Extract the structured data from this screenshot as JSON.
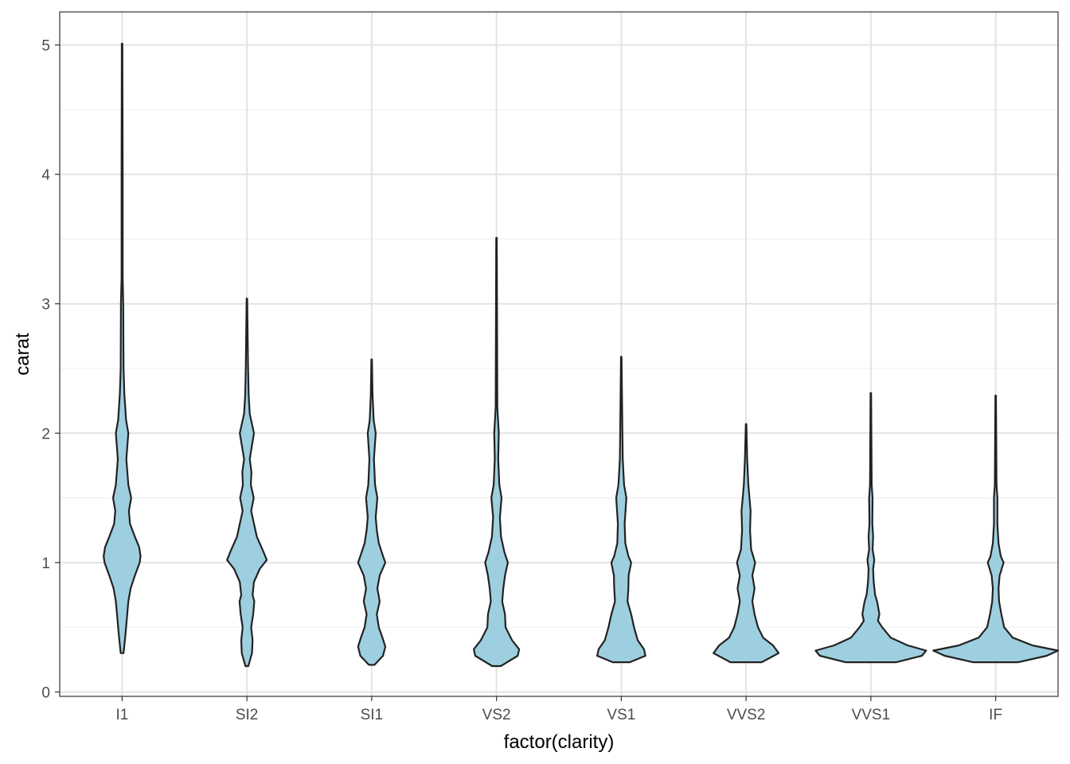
{
  "chart_data": {
    "type": "violin",
    "title": "",
    "xlabel": "factor(clarity)",
    "ylabel": "carat",
    "ylim": [
      0,
      5.1
    ],
    "yticks": [
      0,
      1,
      2,
      3,
      4,
      5
    ],
    "grid": true,
    "legend": "none",
    "fill_color": "#9ecfe0",
    "outline_color": "#222222",
    "categories": [
      "I1",
      "SI2",
      "SI1",
      "VS2",
      "VS1",
      "VVS2",
      "VVS1",
      "IF"
    ],
    "series": [
      {
        "category": "I1",
        "min": 0.3,
        "max": 5.01,
        "profile": [
          [
            0.3,
            0.05
          ],
          [
            0.45,
            0.12
          ],
          [
            0.6,
            0.18
          ],
          [
            0.7,
            0.22
          ],
          [
            0.8,
            0.3
          ],
          [
            0.9,
            0.45
          ],
          [
            1.0,
            0.62
          ],
          [
            1.05,
            0.65
          ],
          [
            1.12,
            0.6
          ],
          [
            1.2,
            0.45
          ],
          [
            1.3,
            0.28
          ],
          [
            1.4,
            0.24
          ],
          [
            1.5,
            0.32
          ],
          [
            1.6,
            0.22
          ],
          [
            1.8,
            0.15
          ],
          [
            2.0,
            0.22
          ],
          [
            2.1,
            0.14
          ],
          [
            2.3,
            0.08
          ],
          [
            2.5,
            0.05
          ],
          [
            3.0,
            0.04
          ],
          [
            3.2,
            0.02
          ],
          [
            4.0,
            0.02
          ],
          [
            5.01,
            0.01
          ]
        ]
      },
      {
        "category": "SI2",
        "min": 0.2,
        "max": 3.04,
        "profile": [
          [
            0.2,
            0.05
          ],
          [
            0.3,
            0.18
          ],
          [
            0.4,
            0.2
          ],
          [
            0.5,
            0.15
          ],
          [
            0.6,
            0.22
          ],
          [
            0.7,
            0.26
          ],
          [
            0.75,
            0.2
          ],
          [
            0.85,
            0.25
          ],
          [
            0.95,
            0.45
          ],
          [
            1.02,
            0.7
          ],
          [
            1.1,
            0.55
          ],
          [
            1.2,
            0.35
          ],
          [
            1.3,
            0.25
          ],
          [
            1.4,
            0.15
          ],
          [
            1.5,
            0.24
          ],
          [
            1.6,
            0.14
          ],
          [
            1.7,
            0.16
          ],
          [
            1.8,
            0.1
          ],
          [
            2.0,
            0.25
          ],
          [
            2.15,
            0.1
          ],
          [
            2.3,
            0.06
          ],
          [
            2.5,
            0.04
          ],
          [
            3.04,
            0.01
          ]
        ]
      },
      {
        "category": "SI1",
        "min": 0.21,
        "max": 2.57,
        "profile": [
          [
            0.21,
            0.1
          ],
          [
            0.28,
            0.4
          ],
          [
            0.35,
            0.48
          ],
          [
            0.42,
            0.38
          ],
          [
            0.5,
            0.25
          ],
          [
            0.6,
            0.18
          ],
          [
            0.7,
            0.28
          ],
          [
            0.8,
            0.2
          ],
          [
            0.9,
            0.28
          ],
          [
            1.0,
            0.48
          ],
          [
            1.05,
            0.4
          ],
          [
            1.15,
            0.25
          ],
          [
            1.25,
            0.18
          ],
          [
            1.35,
            0.14
          ],
          [
            1.5,
            0.2
          ],
          [
            1.6,
            0.12
          ],
          [
            1.8,
            0.08
          ],
          [
            2.0,
            0.14
          ],
          [
            2.1,
            0.07
          ],
          [
            2.3,
            0.03
          ],
          [
            2.57,
            0.01
          ]
        ]
      },
      {
        "category": "VS2",
        "min": 0.2,
        "max": 3.51,
        "profile": [
          [
            0.2,
            0.15
          ],
          [
            0.28,
            0.75
          ],
          [
            0.33,
            0.8
          ],
          [
            0.4,
            0.55
          ],
          [
            0.5,
            0.32
          ],
          [
            0.6,
            0.3
          ],
          [
            0.7,
            0.2
          ],
          [
            0.8,
            0.24
          ],
          [
            0.9,
            0.3
          ],
          [
            1.0,
            0.4
          ],
          [
            1.08,
            0.28
          ],
          [
            1.2,
            0.16
          ],
          [
            1.35,
            0.12
          ],
          [
            1.5,
            0.18
          ],
          [
            1.6,
            0.1
          ],
          [
            1.8,
            0.06
          ],
          [
            2.0,
            0.08
          ],
          [
            2.2,
            0.03
          ],
          [
            3.51,
            0.01
          ]
        ]
      },
      {
        "category": "VS1",
        "min": 0.23,
        "max": 2.59,
        "profile": [
          [
            0.23,
            0.3
          ],
          [
            0.28,
            0.85
          ],
          [
            0.33,
            0.8
          ],
          [
            0.4,
            0.58
          ],
          [
            0.5,
            0.45
          ],
          [
            0.6,
            0.35
          ],
          [
            0.7,
            0.22
          ],
          [
            0.8,
            0.25
          ],
          [
            0.9,
            0.26
          ],
          [
            1.0,
            0.35
          ],
          [
            1.05,
            0.25
          ],
          [
            1.15,
            0.14
          ],
          [
            1.3,
            0.12
          ],
          [
            1.5,
            0.18
          ],
          [
            1.6,
            0.1
          ],
          [
            1.8,
            0.05
          ],
          [
            2.0,
            0.04
          ],
          [
            2.59,
            0.01
          ]
        ]
      },
      {
        "category": "VVS2",
        "min": 0.23,
        "max": 2.07,
        "profile": [
          [
            0.23,
            0.55
          ],
          [
            0.3,
            1.15
          ],
          [
            0.36,
            0.95
          ],
          [
            0.42,
            0.6
          ],
          [
            0.5,
            0.42
          ],
          [
            0.6,
            0.3
          ],
          [
            0.7,
            0.22
          ],
          [
            0.8,
            0.3
          ],
          [
            0.9,
            0.22
          ],
          [
            1.0,
            0.32
          ],
          [
            1.1,
            0.18
          ],
          [
            1.25,
            0.14
          ],
          [
            1.4,
            0.16
          ],
          [
            1.5,
            0.12
          ],
          [
            1.6,
            0.08
          ],
          [
            1.8,
            0.04
          ],
          [
            2.07,
            0.01
          ]
        ]
      },
      {
        "category": "VVS1",
        "min": 0.23,
        "max": 2.31,
        "profile": [
          [
            0.23,
            0.9
          ],
          [
            0.28,
            1.8
          ],
          [
            0.32,
            1.95
          ],
          [
            0.36,
            1.3
          ],
          [
            0.42,
            0.7
          ],
          [
            0.5,
            0.4
          ],
          [
            0.55,
            0.25
          ],
          [
            0.6,
            0.3
          ],
          [
            0.7,
            0.22
          ],
          [
            0.75,
            0.15
          ],
          [
            0.85,
            0.1
          ],
          [
            0.95,
            0.08
          ],
          [
            1.02,
            0.12
          ],
          [
            1.1,
            0.06
          ],
          [
            1.2,
            0.08
          ],
          [
            1.3,
            0.05
          ],
          [
            1.5,
            0.06
          ],
          [
            1.6,
            0.03
          ],
          [
            2.31,
            0.01
          ]
        ]
      },
      {
        "category": "IF",
        "min": 0.23,
        "max": 2.29,
        "profile": [
          [
            0.23,
            0.8
          ],
          [
            0.28,
            1.8
          ],
          [
            0.32,
            2.2
          ],
          [
            0.36,
            1.3
          ],
          [
            0.42,
            0.6
          ],
          [
            0.5,
            0.3
          ],
          [
            0.6,
            0.2
          ],
          [
            0.7,
            0.12
          ],
          [
            0.8,
            0.1
          ],
          [
            0.9,
            0.14
          ],
          [
            1.0,
            0.28
          ],
          [
            1.05,
            0.18
          ],
          [
            1.15,
            0.1
          ],
          [
            1.3,
            0.06
          ],
          [
            1.5,
            0.06
          ],
          [
            1.6,
            0.03
          ],
          [
            2.29,
            0.01
          ]
        ]
      }
    ]
  }
}
